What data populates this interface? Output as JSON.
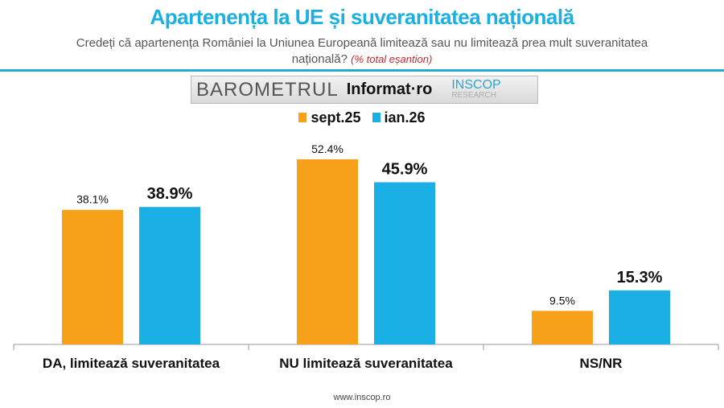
{
  "title": "Apartenența la UE și suveranitatea națională",
  "subtitle": "Credeți că apartenența României la Uniunea Europeană limitează sau nu limitează prea mult suveranitatea națională?",
  "subtitle_note": "(% total eșantion)",
  "logo": {
    "barometru": "BAROMETRUL",
    "informat": "Informat·ro",
    "inscop": "INSCOP",
    "research": "RESEARCH"
  },
  "footer": "www.inscop.ro",
  "chart_data": {
    "type": "bar",
    "title": "Apartenența la UE și suveranitatea națională",
    "categories": [
      "DA, limitează suveranitatea",
      "NU limitează suveranitatea",
      "NS/NR"
    ],
    "series": [
      {
        "name": "sept.25",
        "color": "#f7a11a",
        "values": [
          38.1,
          52.4,
          9.5
        ],
        "labels": [
          "38.1%",
          "52.4%",
          "9.5%"
        ]
      },
      {
        "name": "ian.26",
        "color": "#1ab0e6",
        "values": [
          38.9,
          45.9,
          15.3
        ],
        "labels": [
          "38.9%",
          "45.9%",
          "15.3%"
        ]
      }
    ],
    "ylim": [
      0,
      60
    ],
    "legend": "top-center",
    "grid": false
  }
}
